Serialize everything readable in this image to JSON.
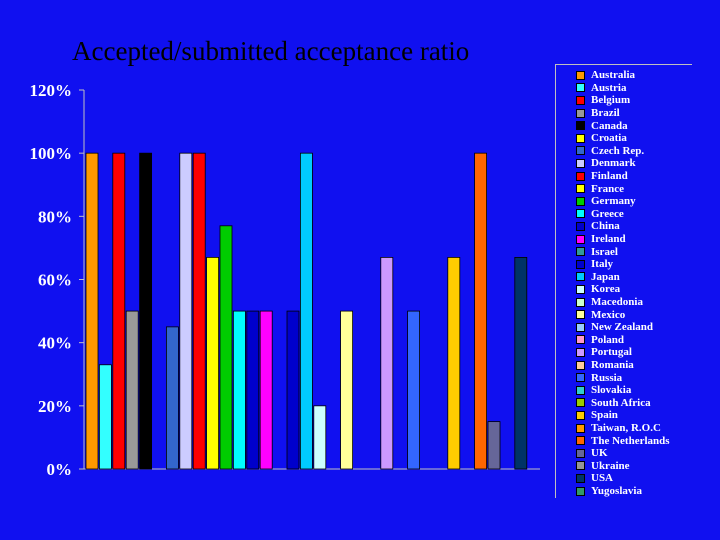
{
  "chart_data": {
    "type": "bar",
    "title": "Accepted/submitted acceptance ratio",
    "y_ticks": [
      "0%",
      "20%",
      "40%",
      "60%",
      "80%",
      "100%",
      "120%"
    ],
    "ylim": [
      0,
      120
    ],
    "grid": false,
    "legend_position": "right",
    "background": "#1010f0",
    "series": [
      {
        "name": "Australia",
        "color": "#ff9900",
        "value": 100
      },
      {
        "name": "Austria",
        "color": "#33ffff",
        "value": 33
      },
      {
        "name": "Belgium",
        "color": "#ff0000",
        "value": 100
      },
      {
        "name": "Brazil",
        "color": "#999999",
        "value": 50
      },
      {
        "name": "Canada",
        "color": "#000000",
        "value": 100
      },
      {
        "name": "Croatia",
        "color": "#ffff00",
        "value": null
      },
      {
        "name": "Czech Rep.",
        "color": "#3366cc",
        "value": 45
      },
      {
        "name": "Denmark",
        "color": "#ccccff",
        "value": 100
      },
      {
        "name": "Finland",
        "color": "#ff0000",
        "value": 100
      },
      {
        "name": "France",
        "color": "#ffff00",
        "value": 67
      },
      {
        "name": "Germany",
        "color": "#00cc00",
        "value": 77
      },
      {
        "name": "Greece",
        "color": "#00ffff",
        "value": 50
      },
      {
        "name": "China",
        "color": "#0000cc",
        "value": 50
      },
      {
        "name": "Ireland",
        "color": "#ff00ff",
        "value": 50
      },
      {
        "name": "Israel",
        "color": "#339999",
        "value": null
      },
      {
        "name": "Italy",
        "color": "#0000cc",
        "value": 50
      },
      {
        "name": "Japan",
        "color": "#00ccff",
        "value": 100
      },
      {
        "name": "Korea",
        "color": "#ccffff",
        "value": 20
      },
      {
        "name": "Macedonia",
        "color": "#ccffcc",
        "value": null
      },
      {
        "name": "Mexico",
        "color": "#ffff99",
        "value": 50
      },
      {
        "name": "New Zealand",
        "color": "#99ccff",
        "value": null
      },
      {
        "name": "Poland",
        "color": "#ff99cc",
        "value": null
      },
      {
        "name": "Portugal",
        "color": "#cc99ff",
        "value": 67
      },
      {
        "name": "Romania",
        "color": "#ffcc99",
        "value": null
      },
      {
        "name": "Russia",
        "color": "#3366ff",
        "value": 50
      },
      {
        "name": "Slovakia",
        "color": "#33cccc",
        "value": null
      },
      {
        "name": "South Africa",
        "color": "#99cc00",
        "value": null
      },
      {
        "name": "Spain",
        "color": "#ffcc00",
        "value": 67
      },
      {
        "name": "Taiwan, R.O.C",
        "color": "#ff9900",
        "value": null
      },
      {
        "name": "The Netherlands",
        "color": "#ff6600",
        "value": 100
      },
      {
        "name": "UK",
        "color": "#666699",
        "value": 15
      },
      {
        "name": "Ukraine",
        "color": "#969696",
        "value": null
      },
      {
        "name": "USA",
        "color": "#003366",
        "value": 67
      },
      {
        "name": "Yugoslavia",
        "color": "#339966",
        "value": null
      }
    ]
  }
}
